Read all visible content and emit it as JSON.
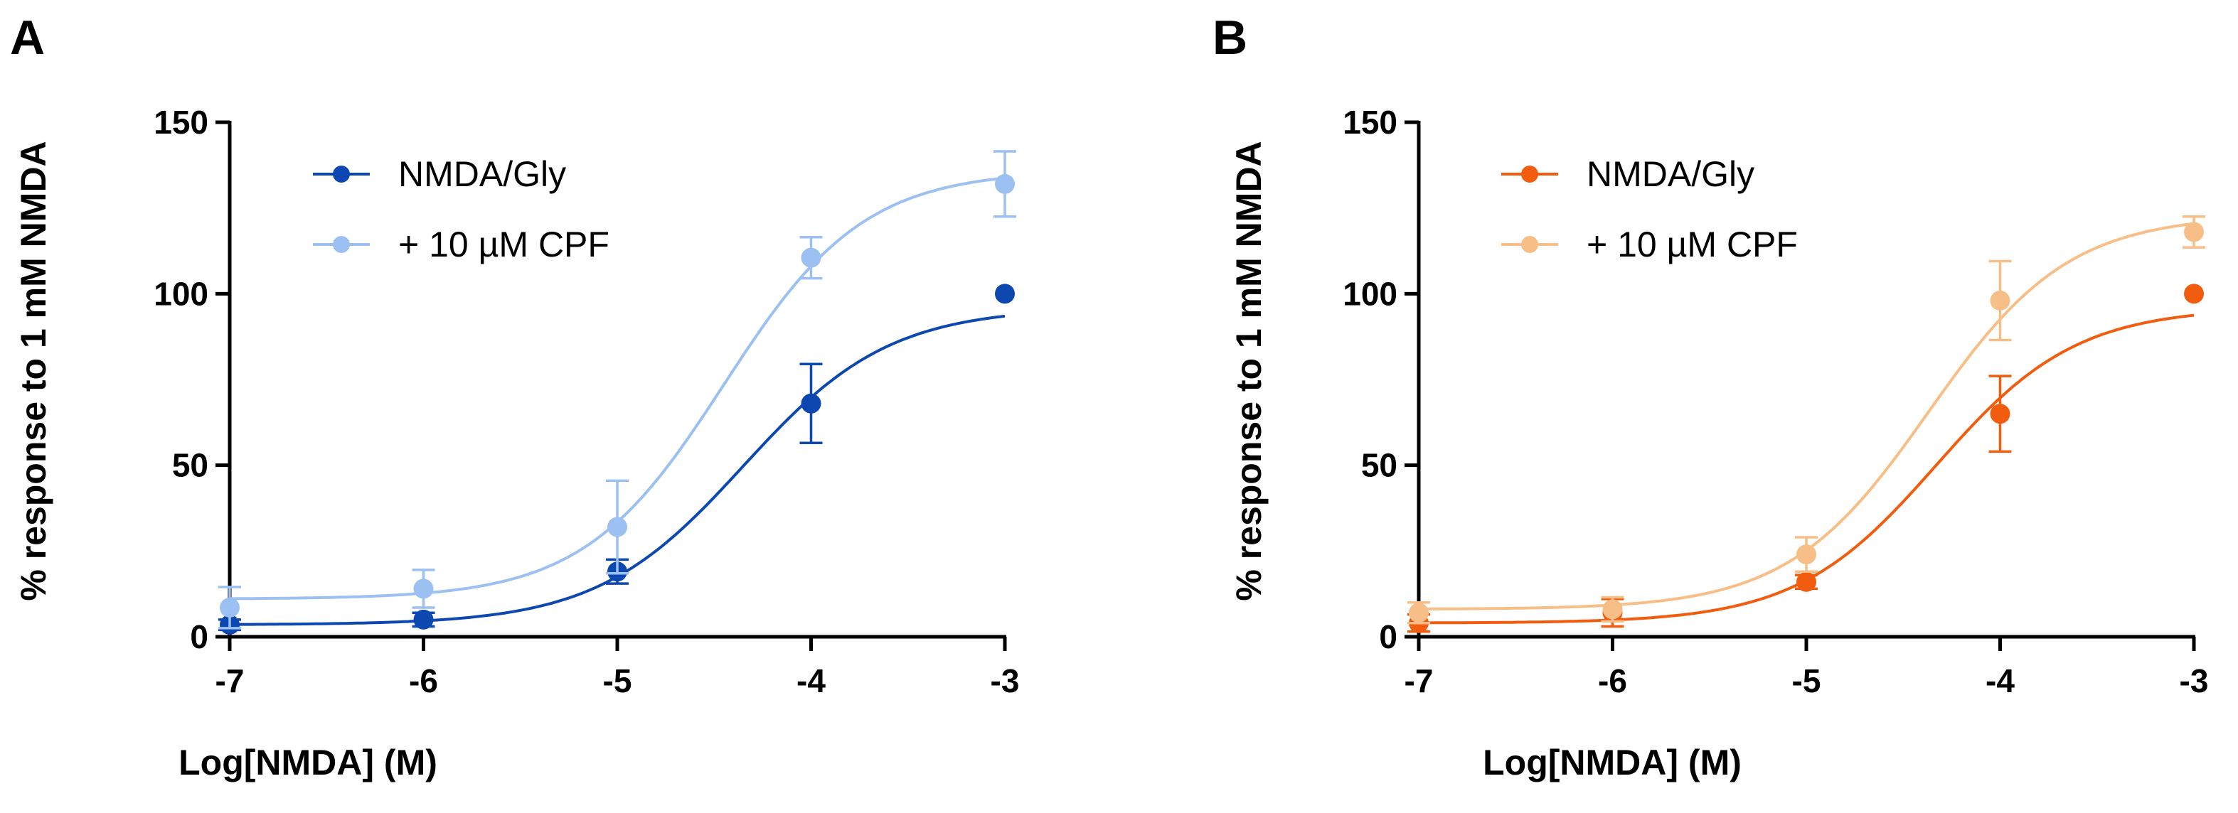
{
  "chart_data": [
    {
      "type": "line",
      "panel_label": "A",
      "xlabel": "Log[NMDA] (M)",
      "ylabel": "% response to 1 mM NMDA",
      "xlim": [
        -7,
        -3
      ],
      "ylim": [
        0,
        150
      ],
      "xticks": [
        -7,
        -6,
        -5,
        -4,
        -3
      ],
      "yticks": [
        0,
        50,
        100,
        150
      ],
      "legend_position": "top-left",
      "grid": false,
      "series": [
        {
          "name": "NMDA/Gly",
          "color": "#0d47b0",
          "x": [
            -7,
            -6,
            -5,
            -4,
            -3
          ],
          "y": [
            3.5,
            5,
            19,
            68,
            100
          ],
          "error": [
            1.5,
            2,
            3.5,
            11.5,
            0
          ],
          "fit": {
            "bottom": 3.5,
            "top": 96,
            "logEC50": -4.35,
            "hill": 1.15
          }
        },
        {
          "name": "+ 10 µM CPF",
          "color": "#9cc0f2",
          "x": [
            -7,
            -6,
            -5,
            -4,
            -3
          ],
          "y": [
            8.5,
            14,
            32,
            110.5,
            132
          ],
          "error": [
            6,
            5.5,
            13.5,
            6,
            9.5
          ],
          "fit": {
            "bottom": 11,
            "top": 136,
            "logEC50": -4.45,
            "hill": 1.2
          }
        }
      ]
    },
    {
      "type": "line",
      "panel_label": "B",
      "xlabel": "Log[NMDA] (M)",
      "ylabel": "% response to 1 mM NMDA",
      "xlim": [
        -7,
        -3
      ],
      "ylim": [
        0,
        150
      ],
      "xticks": [
        -7,
        -6,
        -5,
        -4,
        -3
      ],
      "yticks": [
        0,
        50,
        100,
        150
      ],
      "legend_position": "top-left",
      "grid": false,
      "series": [
        {
          "name": "NMDA/Gly",
          "color": "#f25c0e",
          "x": [
            -7,
            -6,
            -5,
            -4,
            -3
          ],
          "y": [
            4,
            7,
            16,
            65,
            100
          ],
          "error": [
            2.5,
            4,
            2,
            11,
            0
          ],
          "fit": {
            "bottom": 4,
            "top": 96,
            "logEC50": -4.33,
            "hill": 1.2
          }
        },
        {
          "name": "+ 10 µM CPF",
          "color": "#f7be87",
          "x": [
            -7,
            -6,
            -5,
            -4,
            -3
          ],
          "y": [
            7,
            8,
            24,
            98,
            118
          ],
          "error": [
            3,
            3.5,
            5,
            11.5,
            4.5
          ],
          "fit": {
            "bottom": 8,
            "top": 123,
            "logEC50": -4.37,
            "hill": 1.2
          }
        }
      ]
    }
  ]
}
